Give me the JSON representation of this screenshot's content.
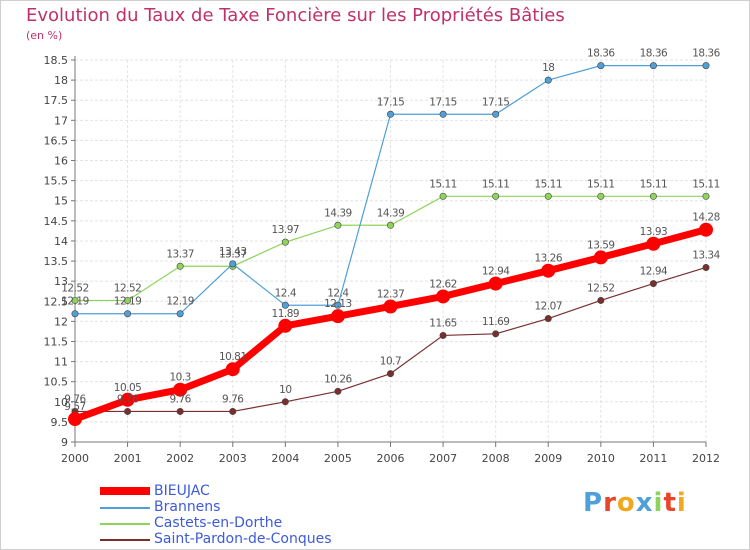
{
  "chart_data": {
    "type": "line",
    "title": "Evolution du Taux de Taxe Foncière sur les Propriétés Bâties",
    "ylabel": "(en %)",
    "xlabel": "",
    "x": [
      "2000",
      "2001",
      "2002",
      "2003",
      "2004",
      "2005",
      "2006",
      "2007",
      "2008",
      "2009",
      "2010",
      "2011",
      "2012"
    ],
    "ylim": [
      9,
      18.5
    ],
    "yticks": [
      "9",
      "9.5",
      "10",
      "10.5",
      "11",
      "11.5",
      "12",
      "12.5",
      "13",
      "13.5",
      "14",
      "14.5",
      "15",
      "15.5",
      "16",
      "16.5",
      "17",
      "17.5",
      "18",
      "18.5"
    ],
    "grid": true,
    "legend_position": "bottom-left",
    "series": [
      {
        "name": "BIEUJAC",
        "color": "#ff0000",
        "labels": [
          "9.57",
          "10.05",
          "10.3",
          "10.81",
          "11.89",
          "12.13",
          "12.37",
          "12.62",
          "12.94",
          "13.26",
          "13.59",
          "13.93",
          "14.28"
        ],
        "values": [
          9.57,
          10.05,
          10.3,
          10.81,
          11.89,
          12.13,
          12.37,
          12.62,
          12.94,
          13.26,
          13.59,
          13.93,
          14.28
        ]
      },
      {
        "name": "Brannens",
        "color": "#4f9fd8",
        "labels": [
          "12.19",
          "12.19",
          "12.19",
          "13.43",
          "12.4",
          "12.4",
          "17.15",
          "17.15",
          "17.15",
          "18",
          "18.36",
          "18.36",
          "18.36"
        ],
        "values": [
          12.19,
          12.19,
          12.19,
          13.43,
          12.4,
          12.4,
          17.15,
          17.15,
          17.15,
          18,
          18.36,
          18.36,
          18.36
        ]
      },
      {
        "name": "Castets-en-Dorthe",
        "color": "#8fd45a",
        "labels": [
          "12.52",
          "12.52",
          "13.37",
          "13.37",
          "13.97",
          "14.39",
          "14.39",
          "15.11",
          "15.11",
          "15.11",
          "15.11",
          "15.11",
          "15.11"
        ],
        "values": [
          12.52,
          12.52,
          13.37,
          13.37,
          13.97,
          14.39,
          14.39,
          15.11,
          15.11,
          15.11,
          15.11,
          15.11,
          15.11
        ]
      },
      {
        "name": "Saint-Pardon-de-Conques",
        "color": "#7a2f2f",
        "labels": [
          "9.76",
          "9.76",
          "9.76",
          "9.76",
          "10",
          "10.26",
          "10.7",
          "11.65",
          "11.69",
          "12.07",
          "12.52",
          "12.94",
          "13.34"
        ],
        "values": [
          9.76,
          9.76,
          9.76,
          9.76,
          10,
          10.26,
          10.7,
          11.65,
          11.69,
          12.07,
          12.52,
          12.94,
          13.34
        ]
      }
    ]
  },
  "brand": {
    "name": "Proxiti",
    "letters": [
      "P",
      "r",
      "o",
      "x",
      "i",
      "t",
      "i"
    ],
    "colors": [
      "#4f9fd8",
      "#e8452a",
      "#f2a81d",
      "#4f9fd8",
      "#8fd45a",
      "#e8452a",
      "#f2a81d"
    ]
  }
}
